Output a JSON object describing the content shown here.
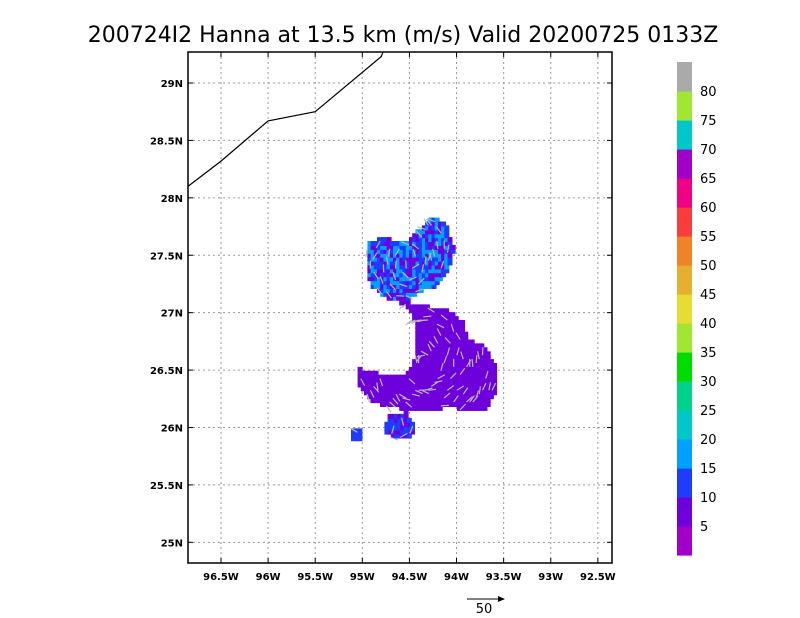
{
  "chart_data": {
    "type": "heatmap",
    "title": "200724I2 Hanna at 13.5 km (m/s) Valid 20200725 0133Z",
    "xlim": [
      -96.85,
      -92.35
    ],
    "ylim": [
      24.82,
      29.27
    ],
    "x_ticks": [
      {
        "value": -96.5,
        "label": "96.5W"
      },
      {
        "value": -96,
        "label": "96W"
      },
      {
        "value": -95.5,
        "label": "95.5W"
      },
      {
        "value": -95,
        "label": "95W"
      },
      {
        "value": -94.5,
        "label": "94.5W"
      },
      {
        "value": -94,
        "label": "94W"
      },
      {
        "value": -93.5,
        "label": "93.5W"
      },
      {
        "value": -93,
        "label": "93W"
      },
      {
        "value": -92.5,
        "label": "92.5W"
      }
    ],
    "y_ticks": [
      {
        "value": 25,
        "label": "25N"
      },
      {
        "value": 25.5,
        "label": "25.5N"
      },
      {
        "value": 26,
        "label": "26N"
      },
      {
        "value": 26.5,
        "label": "26.5N"
      },
      {
        "value": 27,
        "label": "27N"
      },
      {
        "value": 27.5,
        "label": "27.5N"
      },
      {
        "value": 28,
        "label": "28N"
      },
      {
        "value": 28.5,
        "label": "28.5N"
      },
      {
        "value": 29,
        "label": "29N"
      }
    ],
    "grid": true,
    "coastline": [
      [
        -96.85,
        28.1
      ],
      [
        -96.5,
        28.32
      ],
      [
        -96.0,
        28.67
      ],
      [
        -95.5,
        28.75
      ],
      [
        -94.8,
        29.23
      ],
      [
        -94.78,
        29.27
      ]
    ],
    "colorbar": {
      "placement": "right",
      "labels": [
        "5",
        "10",
        "15",
        "20",
        "25",
        "30",
        "35",
        "40",
        "45",
        "50",
        "55",
        "60",
        "65",
        "70",
        "75",
        "80"
      ],
      "colors": [
        "#a000c8",
        "#6e00dc",
        "#1e3cff",
        "#00a0ff",
        "#00c8c8",
        "#00d28c",
        "#00dc00",
        "#a0e632",
        "#e6dc32",
        "#e6af2d",
        "#f08228",
        "#fa3c3c",
        "#f00082",
        "#a000c8",
        "#00c8c8",
        "#a0e632",
        "#aaaaaa"
      ]
    },
    "wind_regions": [
      {
        "name": "northern blob",
        "speed_range_ms": [
          5,
          20
        ],
        "polygon": [
          [
            -94.98,
            27.33
          ],
          [
            -94.95,
            27.62
          ],
          [
            -94.75,
            27.63
          ],
          [
            -94.55,
            27.6
          ],
          [
            -94.45,
            27.68
          ],
          [
            -94.3,
            27.82
          ],
          [
            -94.15,
            27.78
          ],
          [
            -94.05,
            27.55
          ],
          [
            -94.1,
            27.38
          ],
          [
            -94.25,
            27.2
          ],
          [
            -94.4,
            27.18
          ],
          [
            -94.6,
            27.08
          ],
          [
            -94.8,
            27.12
          ],
          [
            -94.92,
            27.22
          ]
        ]
      },
      {
        "name": "central band",
        "speed_range_ms": [
          5,
          10
        ],
        "polygon": [
          [
            -94.65,
            27.1
          ],
          [
            -94.4,
            27.05
          ],
          [
            -94.1,
            27.0
          ],
          [
            -93.95,
            26.9
          ],
          [
            -93.9,
            26.75
          ],
          [
            -93.75,
            26.7
          ],
          [
            -93.62,
            26.55
          ],
          [
            -93.6,
            26.32
          ],
          [
            -93.7,
            26.15
          ],
          [
            -93.9,
            26.12
          ],
          [
            -94.1,
            26.18
          ],
          [
            -94.3,
            26.12
          ],
          [
            -94.6,
            26.15
          ],
          [
            -94.9,
            26.2
          ],
          [
            -95.05,
            26.35
          ],
          [
            -95.05,
            26.5
          ],
          [
            -94.8,
            26.45
          ],
          [
            -94.55,
            26.45
          ],
          [
            -94.45,
            26.6
          ],
          [
            -94.45,
            26.85
          ],
          [
            -94.5,
            27.0
          ]
        ]
      },
      {
        "name": "southern blob",
        "speed_range_ms": [
          5,
          15
        ],
        "polygon": [
          [
            -94.72,
            26.1
          ],
          [
            -94.55,
            26.12
          ],
          [
            -94.48,
            26.0
          ],
          [
            -94.5,
            25.9
          ],
          [
            -94.62,
            25.88
          ],
          [
            -94.75,
            25.92
          ],
          [
            -94.8,
            26.0
          ]
        ]
      },
      {
        "name": "small west cell",
        "speed_range_ms": [
          10,
          15
        ],
        "polygon": [
          [
            -95.12,
            25.97
          ],
          [
            -95.03,
            25.97
          ],
          [
            -95.03,
            25.89
          ],
          [
            -95.12,
            25.89
          ]
        ]
      }
    ],
    "vector_reference": {
      "label": "50",
      "value_ms": 50
    }
  }
}
